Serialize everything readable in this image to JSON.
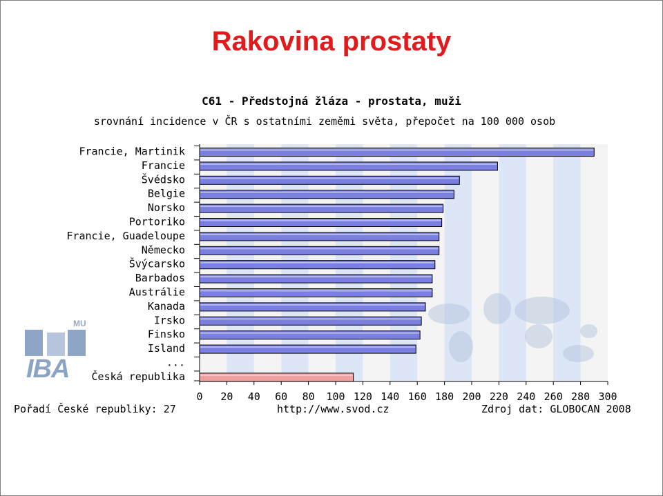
{
  "slide": {
    "title": "Rakovina prostaty"
  },
  "footer": {
    "rank": "Pořadí České republiky: 27",
    "url": "http://www.svod.cz",
    "source": "Zdroj dat: GLOBOCAN 2008"
  },
  "logo": {
    "mu": "MU",
    "iba": "IBA"
  },
  "colors": {
    "title": "#e31a1c",
    "bar": "#7b80e0",
    "bar_highlight": "#f0a0a0",
    "band": "#dde6f7",
    "plot_background": "#f4f4f4"
  },
  "chart_data": {
    "type": "bar",
    "orientation": "horizontal",
    "title": "C61 - Předstojná žláza - prostata, muži",
    "subtitle": "srovnání incidence v ČR s ostatními zeměmi světa, přepočet na 100 000 osob",
    "categories": [
      "Francie, Martinik",
      "Francie",
      "Švédsko",
      "Belgie",
      "Norsko",
      "Portoriko",
      "Francie, Guadeloupe",
      "Německo",
      "Švýcarsko",
      "Barbados",
      "Austrálie",
      "Kanada",
      "Irsko",
      "Finsko",
      "Island",
      "...",
      "Česká republika"
    ],
    "values": [
      290,
      219,
      191,
      187,
      179,
      178,
      176,
      176,
      173,
      171,
      171,
      166,
      163,
      162,
      159,
      null,
      113
    ],
    "highlight": "Česká republika",
    "xlim": [
      0,
      300
    ],
    "xticks": [
      0,
      20,
      40,
      60,
      80,
      100,
      120,
      140,
      160,
      180,
      200,
      220,
      240,
      260,
      280,
      300
    ],
    "grid": "alternating vertical bands"
  }
}
